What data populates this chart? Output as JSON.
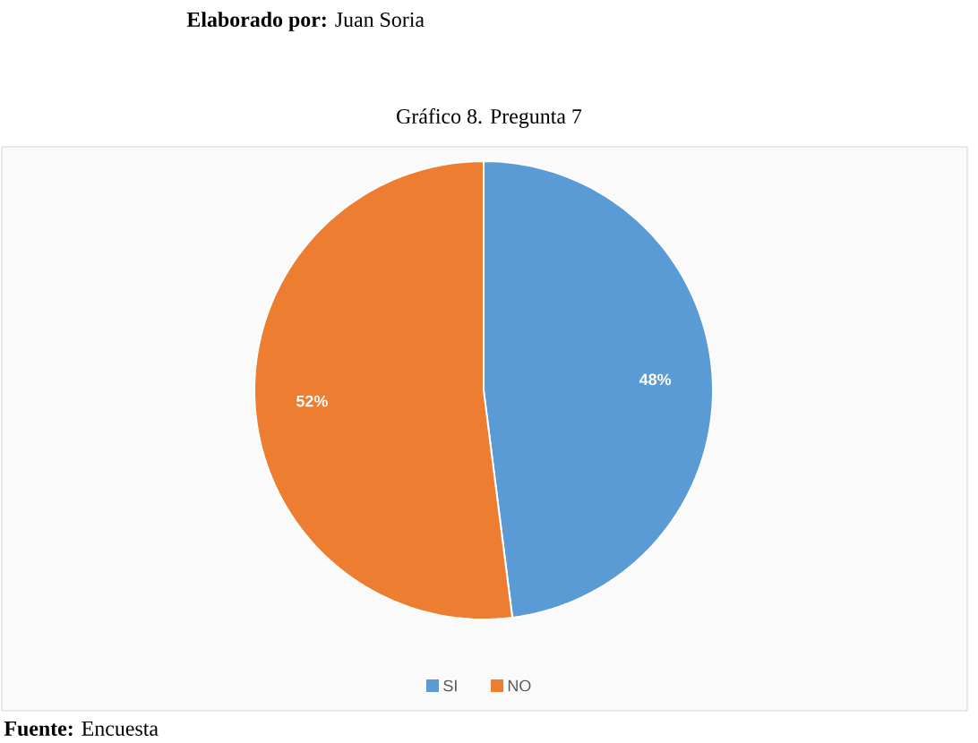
{
  "chart_data": {
    "type": "pie",
    "title": "Gráfico 8. Pregunta 7",
    "categories": [
      "SI",
      "NO"
    ],
    "values": [
      48,
      52
    ],
    "colors": [
      "#5b9bd5",
      "#ed7d31"
    ],
    "value_labels": [
      "48%",
      "52%"
    ],
    "legend": "bottom",
    "annotations": [
      "**Elaborado por:** Juan Soria",
      "**Fuente:** Encuesta"
    ]
  }
}
